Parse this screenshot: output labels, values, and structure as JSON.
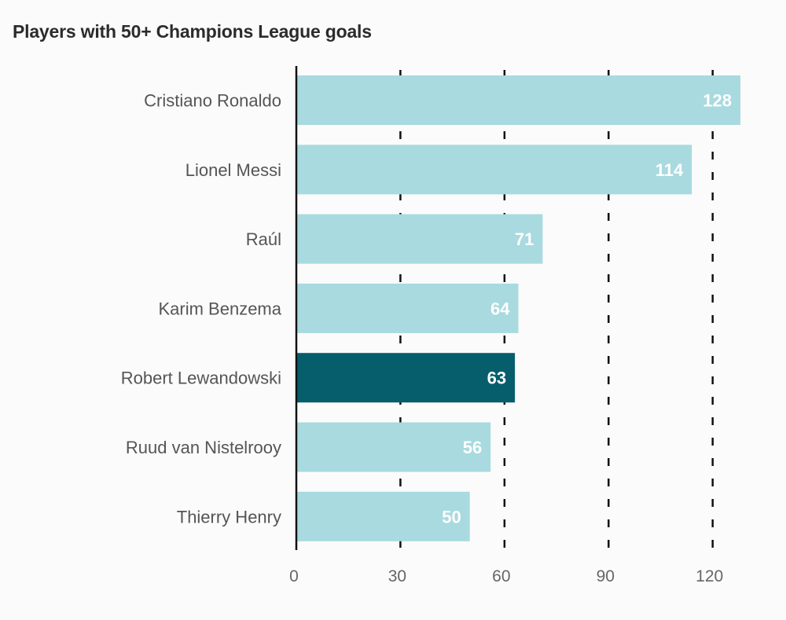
{
  "chart_data": {
    "type": "bar",
    "orientation": "horizontal",
    "title": "Players with 50+ Champions League goals",
    "categories": [
      "Cristiano Ronaldo",
      "Lionel Messi",
      "Raúl",
      "Karim Benzema",
      "Robert Lewandowski",
      "Ruud van Nistelrooy",
      "Thierry Henry"
    ],
    "values": [
      128,
      114,
      71,
      64,
      63,
      56,
      50
    ],
    "highlight": "Robert Lewandowski",
    "xlim": [
      0,
      128
    ],
    "xticks": [
      0,
      30,
      60,
      90,
      120
    ],
    "xlabel": "",
    "ylabel": "",
    "grid": true,
    "grid_style": "dashed",
    "colors": {
      "bar": "#a8dadf",
      "highlight": "#065e6c",
      "value_label": "#ffffff",
      "axis": "#111111",
      "grid": "#111111"
    }
  }
}
